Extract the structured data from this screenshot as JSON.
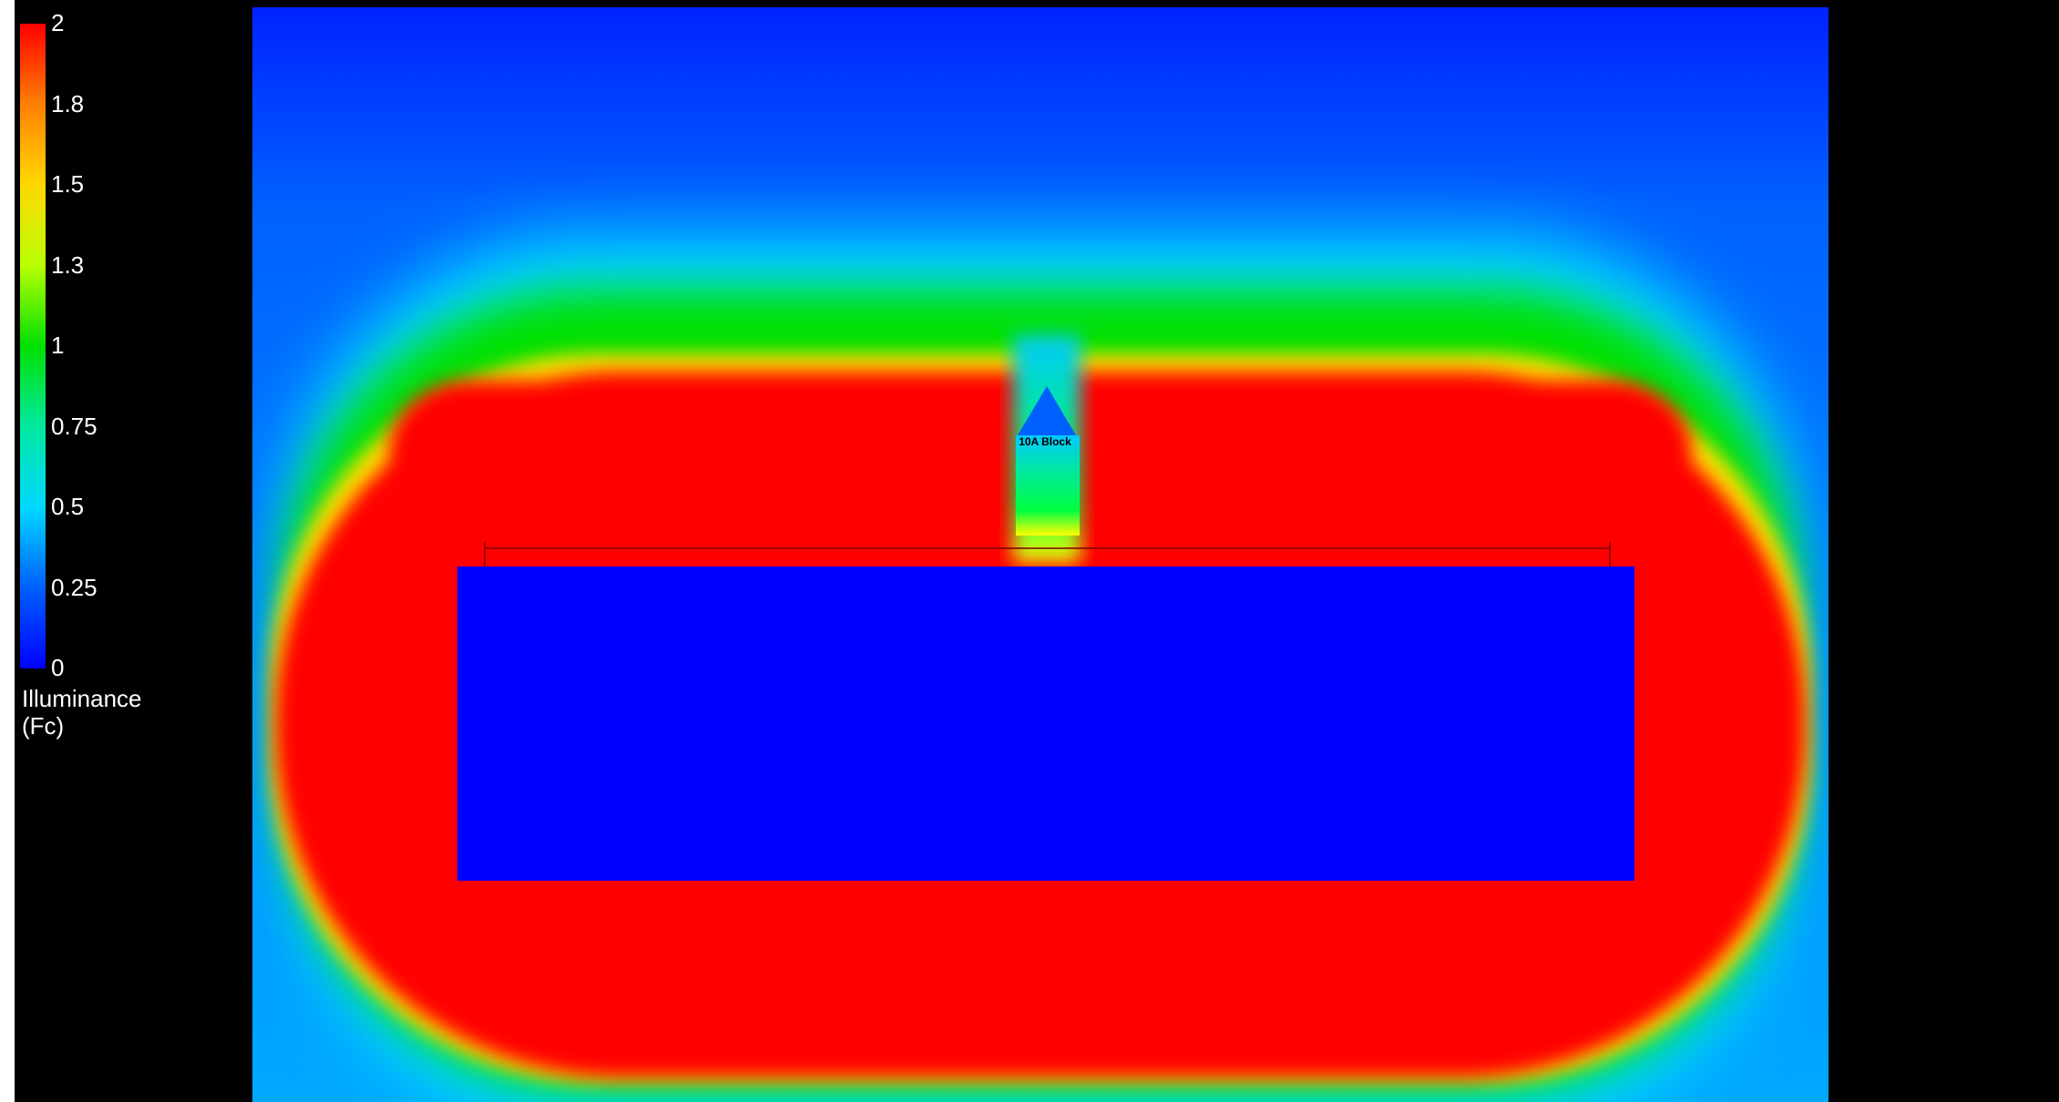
{
  "chart_data": {
    "type": "heatmap",
    "title": "",
    "colorbar": {
      "title_line1": "Illuminance",
      "title_line2": "(Fc)",
      "range": [
        0,
        2
      ],
      "ticks": [
        {
          "label": "2",
          "value": 2
        },
        {
          "label": "1.8",
          "value": 1.75
        },
        {
          "label": "1.5",
          "value": 1.5
        },
        {
          "label": "1.3",
          "value": 1.25
        },
        {
          "label": "1",
          "value": 1
        },
        {
          "label": "0.75",
          "value": 0.75
        },
        {
          "label": "0.5",
          "value": 0.5
        },
        {
          "label": "0.25",
          "value": 0.25
        },
        {
          "label": "0",
          "value": 0
        }
      ],
      "colors": [
        "#0000ff",
        "#0060ff",
        "#00d8ff",
        "#00e8a0",
        "#00e000",
        "#b8ff00",
        "#ffd800",
        "#ff8000",
        "#ff0000"
      ]
    },
    "description_values": {
      "building_interior_illuminance": 0,
      "core_region_illuminance": 2,
      "outer_edge_illuminance": 0.25
    },
    "annotation": "10A Block"
  }
}
